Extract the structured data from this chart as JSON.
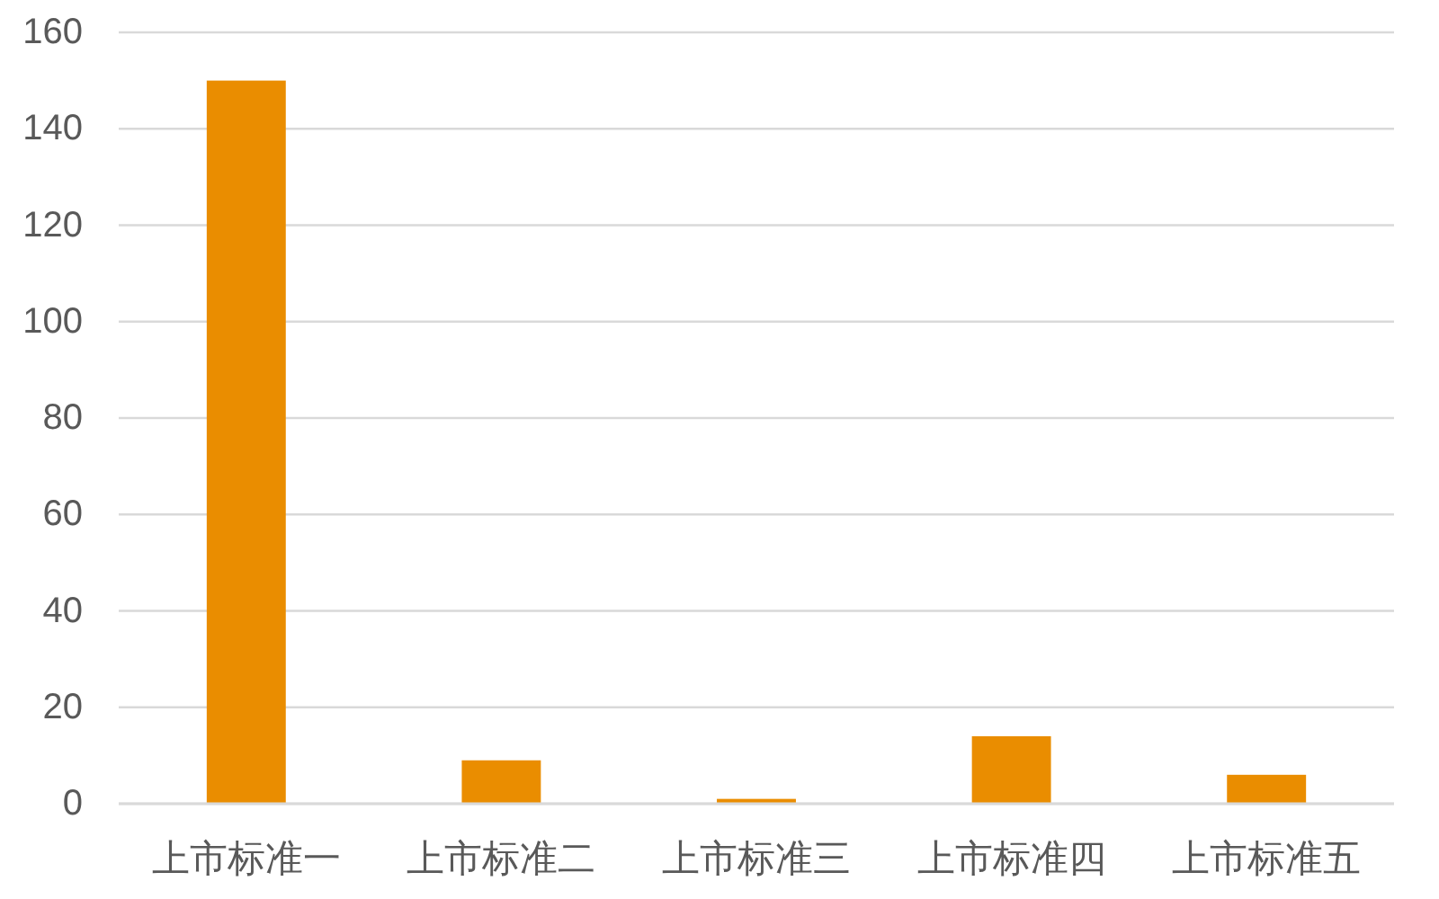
{
  "chart_data": {
    "type": "bar",
    "categories": [
      "上市标准一",
      "上市标准二",
      "上市标准三",
      "上市标准四",
      "上市标准五"
    ],
    "values": [
      150,
      9,
      1,
      14,
      6
    ],
    "color": "#ea8d00",
    "ylim": [
      0,
      160
    ],
    "yticks": [
      0,
      20,
      40,
      60,
      80,
      100,
      120,
      140,
      160
    ],
    "grid": "y"
  }
}
